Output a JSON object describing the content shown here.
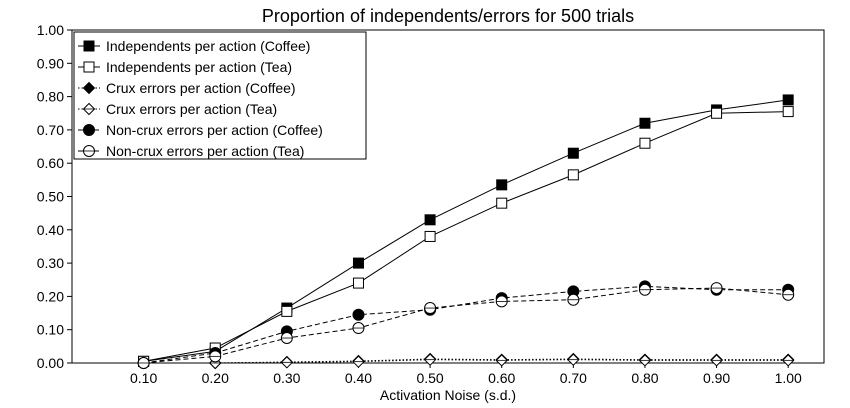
{
  "chart_data": {
    "type": "line",
    "title": "Proportion of independents/errors for 500 trials",
    "xlabel": "Activation Noise (s.d.)",
    "ylabel": "",
    "x": [
      0.1,
      0.2,
      0.3,
      0.4,
      0.5,
      0.6,
      0.7,
      0.8,
      0.9,
      1.0
    ],
    "x_tick_labels": [
      "0.10",
      "0.20",
      "0.30",
      "0.40",
      "0.50",
      "0.60",
      "0.70",
      "0.80",
      "0.90",
      "1.00"
    ],
    "y_tick_labels": [
      "0.00",
      "0.10",
      "0.20",
      "0.30",
      "0.40",
      "0.50",
      "0.60",
      "0.70",
      "0.80",
      "0.90",
      "1.00"
    ],
    "xlim": [
      0.0,
      1.05
    ],
    "ylim": [
      0.0,
      1.0
    ],
    "grid": false,
    "legend_position": "top-left",
    "series": [
      {
        "name": "Independents per action (Coffee)",
        "marker": "square-filled",
        "line": "solid",
        "values": [
          0.005,
          0.035,
          0.165,
          0.3,
          0.43,
          0.535,
          0.63,
          0.72,
          0.76,
          0.79
        ]
      },
      {
        "name": "Independents per action (Tea)",
        "marker": "square-open",
        "line": "solid",
        "values": [
          0.005,
          0.045,
          0.155,
          0.24,
          0.38,
          0.48,
          0.565,
          0.66,
          0.75,
          0.755
        ]
      },
      {
        "name": "Crux errors per action (Coffee)",
        "marker": "diamond-filled",
        "line": "dotted",
        "values": [
          0.0,
          0.0,
          0.003,
          0.006,
          0.012,
          0.01,
          0.012,
          0.01,
          0.01,
          0.01
        ]
      },
      {
        "name": "Crux errors per action (Tea)",
        "marker": "diamond-open",
        "line": "dotted",
        "values": [
          0.0,
          0.0,
          0.002,
          0.004,
          0.01,
          0.008,
          0.01,
          0.008,
          0.008,
          0.008
        ]
      },
      {
        "name": "Non-crux errors per action (Coffee)",
        "marker": "circle-filled",
        "line": "dashed",
        "values": [
          0.0,
          0.03,
          0.095,
          0.145,
          0.16,
          0.195,
          0.215,
          0.23,
          0.22,
          0.22
        ]
      },
      {
        "name": "Non-crux errors per action (Tea)",
        "marker": "circle-open",
        "line": "dashed",
        "values": [
          0.0,
          0.02,
          0.075,
          0.105,
          0.165,
          0.185,
          0.19,
          0.22,
          0.225,
          0.205
        ]
      }
    ]
  }
}
